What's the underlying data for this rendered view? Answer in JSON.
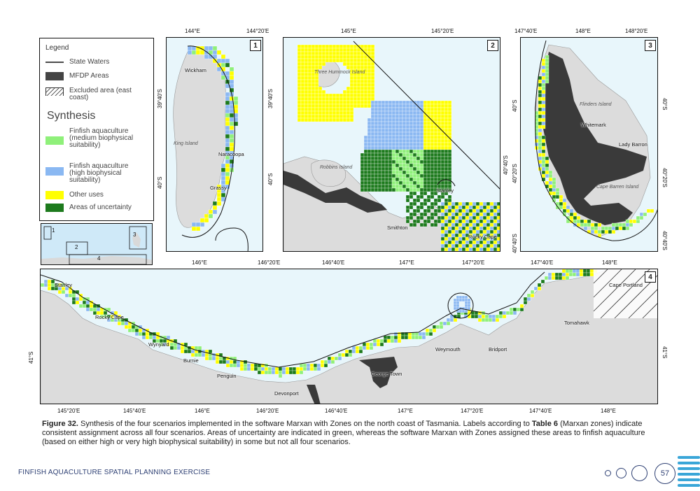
{
  "legend": {
    "title": "Legend",
    "items": [
      {
        "label": "State Waters",
        "color": "#111111"
      },
      {
        "label": "MFDP Areas",
        "color": "#444444"
      },
      {
        "label": "Excluded area (east coast)",
        "color": "hatch"
      }
    ],
    "synthesis_title": "Synthesis",
    "synthesis_items": [
      {
        "label": "Finfish aquaculture (medium biophysical suitability)",
        "color": "#8ff07a"
      },
      {
        "label": "Finfish aquaculture (high biophysical suitability)",
        "color": "#8ab8f2"
      },
      {
        "label": "Other uses",
        "color": "#ffff00"
      },
      {
        "label": "Areas of uncertainty",
        "color": "#1d7a1d"
      }
    ]
  },
  "inset": {
    "labels": [
      "1",
      "2",
      "3",
      "4"
    ]
  },
  "panel1": {
    "number": "1",
    "top_ticks": [
      "144°E",
      "144°20'E"
    ],
    "bottom_ticks": [
      "146°E",
      "146°20'E"
    ],
    "left_ticks": [
      "39°40'S",
      "40°S"
    ],
    "right_ticks": [
      "39°40'S",
      "40°S"
    ],
    "places": [
      "Wickham",
      "Naracoopa",
      "Grassy"
    ],
    "islands": [
      "King Island"
    ]
  },
  "panel2": {
    "number": "2",
    "top_ticks": [
      "145°E",
      "145°20'E"
    ],
    "bottom_ticks": [
      "146°40'E",
      "147°E",
      "147°20'E"
    ],
    "right_ticks": [
      "40°40'S"
    ],
    "places": [
      "Stanley",
      "Smithton",
      "Rocky Cape"
    ],
    "islands": [
      "Three Hummock Island",
      "Robbins Island"
    ]
  },
  "panel3": {
    "number": "3",
    "top_ticks": [
      "147°40'E",
      "148°E",
      "148°20'E"
    ],
    "bottom_ticks": [
      "147°40'E",
      "148°E"
    ],
    "left_ticks": [
      "40°S",
      "40°20'S",
      "40°40'S"
    ],
    "right_ticks": [
      "40°S",
      "40°20'S",
      "40°40'S"
    ],
    "places": [
      "Whitemark",
      "Lady Barron"
    ],
    "islands": [
      "Flinders Island",
      "Cape Barren Island"
    ]
  },
  "panel4": {
    "number": "4",
    "bottom_ticks": [
      "145°20'E",
      "145°40'E",
      "146°E",
      "146°20'E",
      "146°40'E",
      "147°E",
      "147°20'E",
      "147°40'E",
      "148°E"
    ],
    "left_ticks": [
      "41°S"
    ],
    "right_ticks": [
      "41°S"
    ],
    "places": [
      "Stanley",
      "Rocky Cape",
      "Wynyard",
      "Burnie",
      "Penguin",
      "Devonport",
      "George Town",
      "Weymouth",
      "Bridport",
      "Tomahawk",
      "Cape Portland"
    ]
  },
  "caption": {
    "figure_label": "Figure 32.",
    "text_1": "Synthesis of the four scenarios implemented in the software Marxan with Zones on the north coast of Tasmania. Labels according to",
    "table_ref": "Table 6",
    "text_2": "(Marxan zones) indicate consistent assignment across all four scenarios. Areas of uncertainty are indicated in green, whereas the software Marxan with Zones assigned these areas to finfish aquaculture (based on either high or very high biophysical suitability) in some but not all four scenarios."
  },
  "footer": {
    "title": "FINFISH AQUACULTURE SPATIAL PLANNING EXERCISE",
    "page": "57"
  },
  "colors": {
    "sea": "#e8f6fb",
    "land": "#dcdcdc",
    "mfdp": "#444444",
    "medium": "#8ff07a",
    "high": "#8ab8f2",
    "other": "#ffff00",
    "uncertain": "#1d7a1d",
    "accent": "#2d3f73"
  }
}
